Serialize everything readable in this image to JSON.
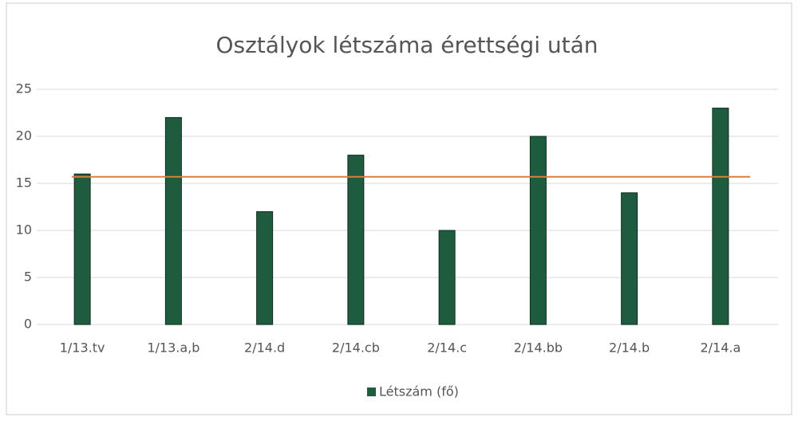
{
  "chart_data": {
    "type": "bar",
    "title": "Osztályok létszáma érettségi után",
    "categories": [
      "1/13.tv",
      "1/13.a,b",
      "2/14.d",
      "2/14.cb",
      "2/14.c",
      "2/14.bb",
      "2/14.b",
      "2/14.a"
    ],
    "series": [
      {
        "name": "Létszám (fő)",
        "color": "#1f5c3f",
        "values": [
          16,
          22,
          12,
          18,
          10,
          20,
          14,
          23
        ]
      }
    ],
    "reference_line": {
      "value": 15.7,
      "color": "#e07b39"
    },
    "ylim": [
      0,
      25
    ],
    "yticks": [
      0,
      5,
      10,
      15,
      20,
      25
    ],
    "grid": true,
    "legend": "bottom"
  }
}
